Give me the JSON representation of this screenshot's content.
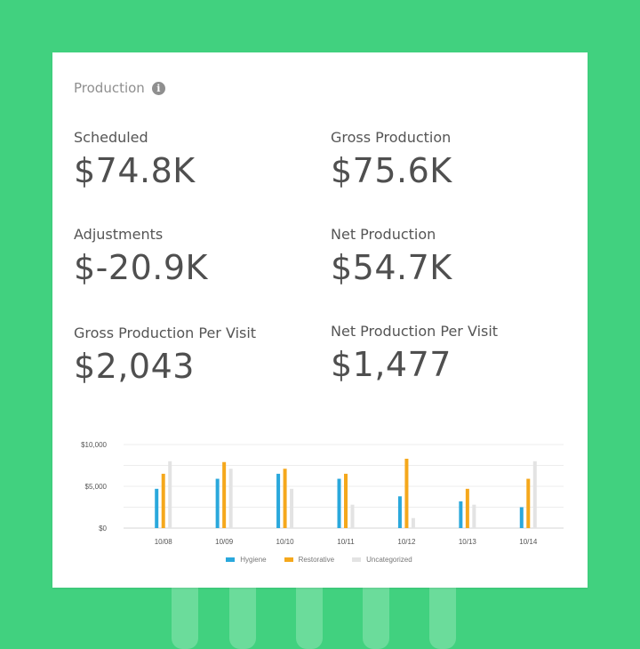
{
  "card": {
    "title": "Production",
    "info_icon": "info-icon",
    "metrics": [
      {
        "label": "Scheduled",
        "value": "$74.8K"
      },
      {
        "label": "Gross Production",
        "value": "$75.6K"
      },
      {
        "label": "Adjustments",
        "value": "$-20.9K"
      },
      {
        "label": "Net Production",
        "value": "$54.7K"
      },
      {
        "label": "Gross Production Per Visit",
        "value": "$2,043"
      },
      {
        "label": "Net Production Per Visit",
        "value": "$1,477"
      }
    ]
  },
  "colors": {
    "background": "#41d17f",
    "hygiene": "#2aa8dc",
    "restorative": "#f5a81c",
    "uncategorized": "#e3e3e3"
  },
  "chart_data": {
    "type": "bar",
    "categories": [
      "10/08",
      "10/09",
      "10/10",
      "10/11",
      "10/12",
      "10/13",
      "10/14"
    ],
    "series": [
      {
        "name": "Hygiene",
        "values": [
          4700,
          5900,
          6500,
          5900,
          3800,
          3200,
          2500
        ]
      },
      {
        "name": "Restorative",
        "values": [
          6500,
          7900,
          7100,
          6500,
          8300,
          4700,
          5900
        ]
      },
      {
        "name": "Uncategorized",
        "values": [
          8000,
          7100,
          4700,
          2800,
          1200,
          2800,
          8000
        ]
      }
    ],
    "ytick_labels": [
      "$10,000",
      "$5,000",
      "$0"
    ],
    "yticks": [
      10000,
      5000,
      0
    ],
    "ylim": [
      0,
      10000
    ],
    "grid": true,
    "legend_position": "bottom"
  }
}
